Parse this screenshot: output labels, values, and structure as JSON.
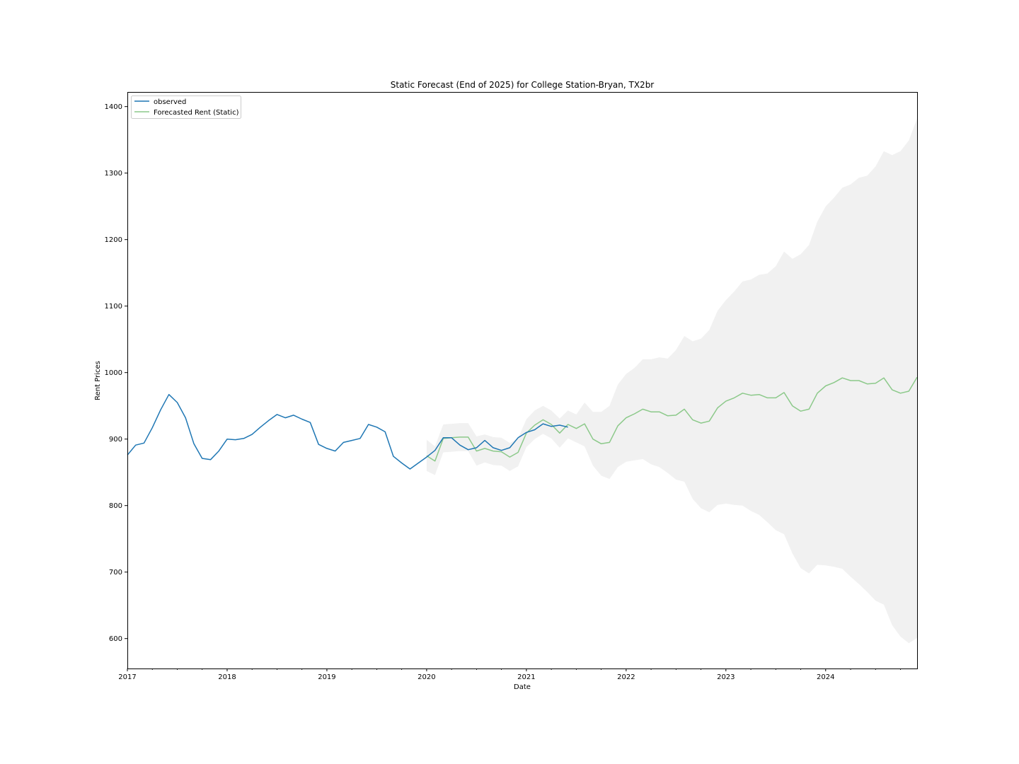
{
  "chart_data": {
    "type": "line",
    "title": "Static Forecast (End of 2025) for College Station-Bryan, TX2br",
    "xlabel": "Date",
    "ylabel": "Rent Prices",
    "xlim": [
      "2017-01",
      "2024-12"
    ],
    "ylim": [
      555,
      1422
    ],
    "x_ticks": [
      "2017",
      "2018",
      "2019",
      "2020",
      "2021",
      "2022",
      "2023",
      "2024"
    ],
    "y_ticks": [
      600,
      700,
      800,
      900,
      1000,
      1100,
      1200,
      1300,
      1400
    ],
    "grid": false,
    "legend": {
      "placement": "upper left",
      "entries": [
        "observed",
        "Forecasted Rent (Static)"
      ]
    },
    "colors": {
      "observed": "#1f77b4",
      "forecast": "#8cc98a",
      "confidence_band": "#e6e6e6"
    },
    "series": [
      {
        "name": "observed",
        "start": "2017-01",
        "values": [
          876,
          891,
          894,
          917,
          944,
          967,
          955,
          932,
          893,
          871,
          869,
          882,
          900,
          899,
          901,
          907,
          918,
          928,
          937,
          932,
          936,
          930,
          925,
          892,
          886,
          882,
          895,
          898,
          901,
          922,
          918,
          911,
          874,
          864,
          855,
          864,
          873,
          883,
          902,
          902,
          891,
          884,
          887,
          898,
          887,
          883,
          887,
          902,
          910,
          914,
          923,
          919,
          921,
          918
        ]
      },
      {
        "name": "Forecasted Rent (Static)",
        "start": "2020-01",
        "values": [
          875,
          867,
          901,
          902,
          903,
          903,
          882,
          886,
          882,
          881,
          873,
          880,
          909,
          921,
          929,
          922,
          909,
          922,
          916,
          923,
          900,
          893,
          895,
          920,
          932,
          938,
          945,
          941,
          941,
          935,
          936,
          945,
          929,
          924,
          927,
          947,
          957,
          962,
          969,
          966,
          967,
          962,
          962,
          970,
          950,
          942,
          945,
          969,
          980,
          985,
          992,
          988,
          988,
          983,
          984,
          992,
          974,
          969,
          972,
          993
        ]
      }
    ],
    "confidence_band": {
      "start": "2020-01",
      "upper": [
        899,
        889,
        922,
        923,
        924,
        924,
        904,
        907,
        903,
        902,
        894,
        901,
        930,
        943,
        950,
        943,
        931,
        943,
        937,
        955,
        941,
        941,
        950,
        982,
        998,
        1007,
        1020,
        1020,
        1023,
        1021,
        1034,
        1055,
        1047,
        1051,
        1064,
        1093,
        1109,
        1122,
        1137,
        1140,
        1147,
        1149,
        1160,
        1182,
        1171,
        1178,
        1192,
        1227,
        1250,
        1263,
        1278,
        1283,
        1293,
        1296,
        1310,
        1333,
        1327,
        1333,
        1349,
        1382
      ],
      "lower": [
        852,
        846,
        880,
        881,
        882,
        882,
        860,
        865,
        861,
        860,
        852,
        859,
        888,
        900,
        908,
        901,
        887,
        901,
        895,
        889,
        860,
        845,
        840,
        858,
        866,
        868,
        870,
        862,
        858,
        849,
        839,
        836,
        810,
        796,
        790,
        801,
        803,
        801,
        800,
        792,
        786,
        775,
        763,
        757,
        728,
        706,
        698,
        711,
        710,
        708,
        705,
        693,
        682,
        670,
        657,
        651,
        620,
        603,
        593,
        601
      ]
    }
  }
}
